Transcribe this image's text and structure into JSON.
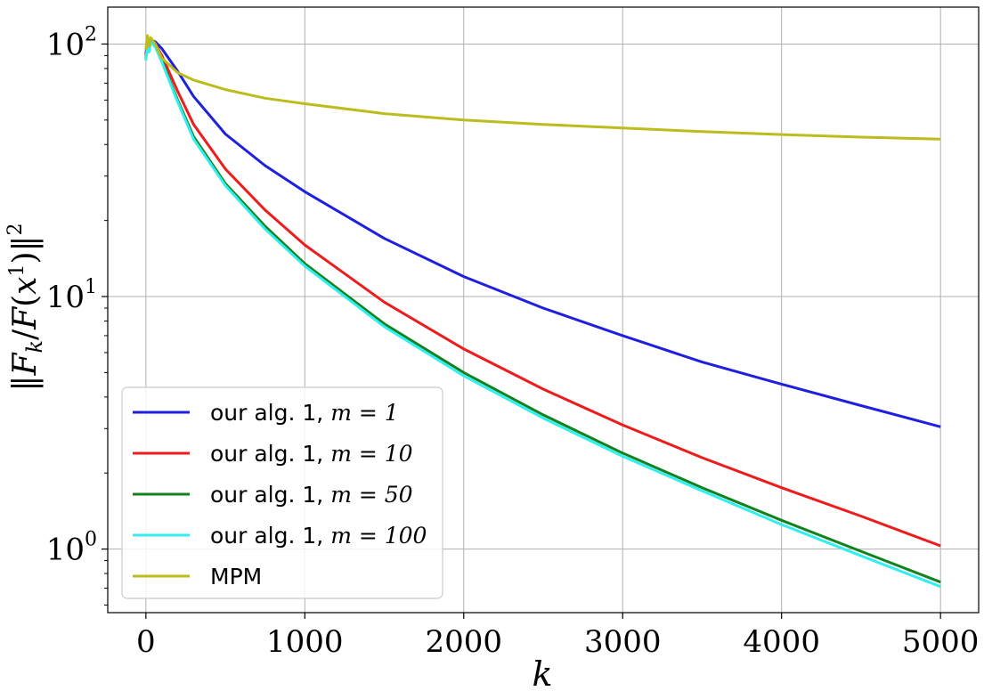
{
  "chart_data": {
    "type": "line",
    "title": "",
    "xlabel": "k",
    "ylabel": "||F_k / F(x^1)||^2",
    "xlim": [
      -240,
      5240
    ],
    "ylim": [
      0.56,
      140
    ],
    "yscale": "log",
    "grid": true,
    "legend_position": "lower-left",
    "x_ticks": [
      "0",
      "1000",
      "2000",
      "3000",
      "4000",
      "5000"
    ],
    "x_tick_values": [
      0,
      1000,
      2000,
      3000,
      4000,
      5000
    ],
    "y_ticks": [
      {
        "base": "10",
        "exp": "0",
        "value": 1
      },
      {
        "base": "10",
        "exp": "1",
        "value": 10
      },
      {
        "base": "10",
        "exp": "2",
        "value": 100
      }
    ],
    "series": [
      {
        "name": "our alg. 1, m = 1",
        "legend_prefix": "our alg. 1, ",
        "legend_math": "m = 1",
        "color": "#1f1fe0",
        "x": [
          0,
          10,
          20,
          30,
          60,
          100,
          200,
          300,
          500,
          750,
          1000,
          1500,
          2000,
          2500,
          3000,
          3500,
          4000,
          4500,
          5000
        ],
        "y": [
          92,
          100,
          96,
          104,
          102,
          96,
          78,
          62,
          44,
          33,
          26,
          17,
          12,
          9,
          7,
          5.5,
          4.5,
          3.7,
          3.05
        ]
      },
      {
        "name": "our alg. 1, m = 10",
        "legend_prefix": "our alg. 1, ",
        "legend_math": "m = 10",
        "color": "#ee1c1c",
        "x": [
          0,
          10,
          20,
          30,
          60,
          100,
          200,
          300,
          500,
          750,
          1000,
          1500,
          2000,
          2500,
          3000,
          3500,
          4000,
          4500,
          5000
        ],
        "y": [
          90,
          100,
          95,
          104,
          100,
          90,
          65,
          48,
          32,
          22,
          16,
          9.5,
          6.2,
          4.3,
          3.1,
          2.3,
          1.75,
          1.35,
          1.03
        ]
      },
      {
        "name": "our alg. 1, m = 50",
        "legend_prefix": "our alg. 1, ",
        "legend_math": "m = 50",
        "color": "#12821e",
        "x": [
          0,
          10,
          20,
          30,
          60,
          100,
          200,
          300,
          500,
          750,
          1000,
          1500,
          2000,
          2500,
          3000,
          3500,
          4000,
          4500,
          5000
        ],
        "y": [
          88,
          99,
          94,
          103,
          98,
          86,
          60,
          43,
          28,
          19,
          13.5,
          7.8,
          5.0,
          3.4,
          2.4,
          1.75,
          1.3,
          0.98,
          0.74
        ]
      },
      {
        "name": "our alg. 1, m = 100",
        "legend_prefix": "our alg. 1, ",
        "legend_math": "m = 100",
        "color": "#33eeee",
        "x": [
          0,
          10,
          20,
          30,
          60,
          100,
          200,
          300,
          500,
          750,
          1000,
          1500,
          2000,
          2500,
          3000,
          3500,
          4000,
          4500,
          5000
        ],
        "y": [
          86,
          98,
          93,
          102,
          97,
          85,
          59,
          42,
          27.5,
          18.5,
          13.2,
          7.6,
          4.85,
          3.3,
          2.33,
          1.7,
          1.25,
          0.94,
          0.71
        ]
      },
      {
        "name": "MPM",
        "legend_prefix": "MPM",
        "legend_math": "",
        "color": "#bcbc1c",
        "x": [
          0,
          10,
          20,
          30,
          60,
          100,
          200,
          300,
          500,
          750,
          1000,
          1500,
          2000,
          2500,
          3000,
          3500,
          4000,
          4500,
          5000
        ],
        "y": [
          95,
          108,
          98,
          106,
          100,
          88,
          77,
          72,
          66,
          61,
          58,
          53,
          50,
          48,
          46.5,
          45,
          43.8,
          42.8,
          42
        ]
      }
    ]
  }
}
